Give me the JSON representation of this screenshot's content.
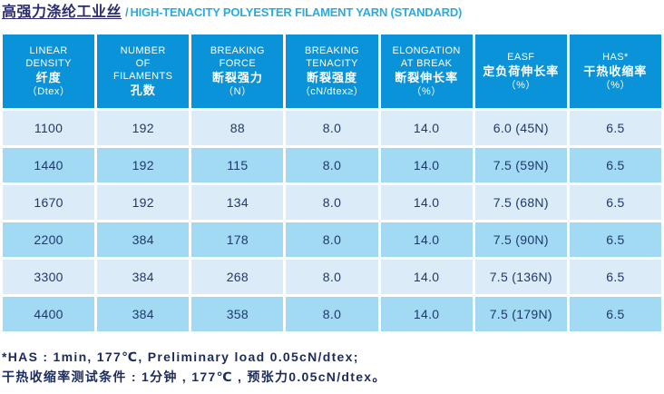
{
  "title": {
    "zh": "高强力涤纶工业丝",
    "sep": "/",
    "en": "HIGH-TENACITY POLYESTER FILAMENT YARN (STANDARD)"
  },
  "table": {
    "columns": [
      {
        "en": [
          "LINEAR",
          "DENSITY"
        ],
        "zh": "纤度",
        "unit": "（Dtex）"
      },
      {
        "en": [
          "NUMBER",
          "OF",
          "FILAMENTS"
        ],
        "zh": "孔数",
        "unit": ""
      },
      {
        "en": [
          "BREAKING",
          "FORCE"
        ],
        "zh": "断裂强力",
        "unit": "（N）"
      },
      {
        "en": [
          "BREAKING",
          "TENACITY"
        ],
        "zh": "断裂强度",
        "unit": "（cN/dtex≥）"
      },
      {
        "en": [
          "ELONGATION",
          "AT BREAK"
        ],
        "zh": "断裂伸长率",
        "unit": "（%）"
      },
      {
        "en": [
          "EASF"
        ],
        "zh": "定负荷伸长率",
        "unit": "（%）"
      },
      {
        "en": [
          "HAS*"
        ],
        "zh": "干热收缩率",
        "unit": "（%）"
      }
    ],
    "rows": [
      [
        "1100",
        "192",
        "88",
        "8.0",
        "14.0",
        "6.0 (45N)",
        "6.5"
      ],
      [
        "1440",
        "192",
        "115",
        "8.0",
        "14.0",
        "7.5 (59N)",
        "6.5"
      ],
      [
        "1670",
        "192",
        "134",
        "8.0",
        "14.0",
        "7.5 (68N)",
        "6.5"
      ],
      [
        "2200",
        "384",
        "178",
        "8.0",
        "14.0",
        "7.5 (90N)",
        "6.5"
      ],
      [
        "3300",
        "384",
        "268",
        "8.0",
        "14.0",
        "7.5 (136N)",
        "6.5"
      ],
      [
        "4400",
        "384",
        "358",
        "8.0",
        "14.0",
        "7.5 (179N)",
        "6.5"
      ]
    ]
  },
  "notes": [
    "*HAS : 1min, 177℃, Preliminary load 0.05cN/dtex;",
    "干热收缩率测试条件 : 1分钟 , 177℃ , 预张力0.05cN/dtex。"
  ],
  "colors": {
    "header_bg": "#0a93d8",
    "row_light": "#dcebf8",
    "row_medium": "#a2d9f3",
    "header_text": "#ffffff",
    "cell_text": "#1e3a6b",
    "title_zh": "#2b2d6e",
    "title_en": "#29abe2",
    "note_text": "#1b2b5e"
  }
}
